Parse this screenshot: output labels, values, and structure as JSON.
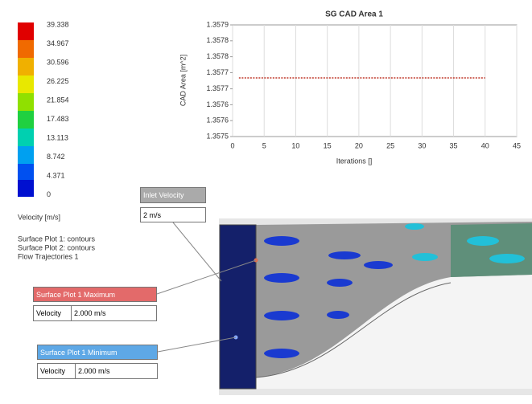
{
  "legend": {
    "values": [
      "39.338",
      "34.967",
      "30.596",
      "26.225",
      "21.854",
      "17.483",
      "13.113",
      "8.742",
      "4.371",
      "0"
    ],
    "title": "Velocity [m/s]"
  },
  "notes": [
    "Surface Plot 1: contours",
    "Surface Plot 2: contours",
    "Flow Trajectories 1"
  ],
  "callouts": {
    "inlet": {
      "title": "Inlet Velocity",
      "value": "2 m/s"
    },
    "maximum": {
      "title": "Surface Plot 1 Maximum",
      "label": "Velocity",
      "value": "2.000 m/s"
    },
    "minimum": {
      "title": "Surface Plot 1 Minimum",
      "label": "Velocity",
      "value": "2.000 m/s"
    }
  },
  "chart_data": {
    "type": "line",
    "title": "SG CAD Area 1",
    "x_label": "Iterations []",
    "y_label": "CAD Area [m^2]",
    "x": [
      1,
      2,
      3,
      4,
      5,
      6,
      7,
      8,
      9,
      10,
      11,
      12,
      13,
      14,
      15,
      16,
      17,
      18,
      19,
      20,
      21,
      22,
      23,
      24,
      25,
      26,
      27,
      28,
      29,
      30,
      31,
      32,
      33,
      34,
      35,
      36,
      37,
      38,
      39,
      40
    ],
    "values": [
      1.35771,
      1.35771,
      1.35771,
      1.35771,
      1.35771,
      1.35771,
      1.35771,
      1.35771,
      1.35771,
      1.35771,
      1.35771,
      1.35771,
      1.35771,
      1.35771,
      1.35771,
      1.35771,
      1.35771,
      1.35771,
      1.35771,
      1.35771,
      1.35771,
      1.35771,
      1.35771,
      1.35771,
      1.35771,
      1.35771,
      1.35771,
      1.35771,
      1.35771,
      1.35771,
      1.35771,
      1.35771,
      1.35771,
      1.35771,
      1.35771,
      1.35771,
      1.35771,
      1.35771,
      1.35771,
      1.35771
    ],
    "color": "#c0392b",
    "xlim": [
      0,
      45
    ],
    "xticks": [
      0,
      5,
      10,
      15,
      20,
      25,
      30,
      35,
      40,
      45
    ],
    "ylim": [
      1.3575,
      1.3579
    ],
    "yticks": [
      {
        "value": 1.3575,
        "label": "1.3575"
      },
      {
        "value": 1.357557,
        "label": "1.3576"
      },
      {
        "value": 1.357614,
        "label": "1.3576"
      },
      {
        "value": 1.357671,
        "label": "1.3577"
      },
      {
        "value": 1.357729,
        "label": "1.3577"
      },
      {
        "value": 1.357786,
        "label": "1.3578"
      },
      {
        "value": 1.357843,
        "label": "1.3578"
      },
      {
        "value": 1.3579,
        "label": "1.3579"
      }
    ],
    "grid": true
  }
}
